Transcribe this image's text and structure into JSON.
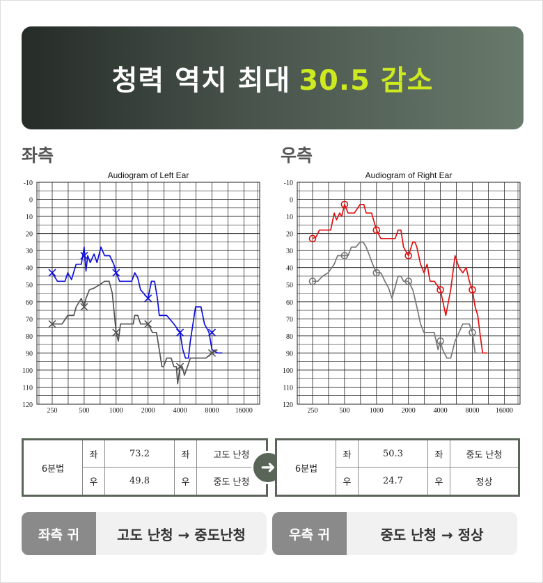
{
  "banner": {
    "title": "청력 역치 최대",
    "highlight": "30.5 감소",
    "highlight_color": "#cdea20"
  },
  "left_label": "좌측",
  "right_label": "우측",
  "chart_data": [
    {
      "type": "line",
      "title": "Audiogram of Left Ear",
      "x_ticks": [
        "250",
        "500",
        "1000",
        "2000",
        "4000",
        "8000",
        "16000"
      ],
      "y_ticks": [
        "-10",
        "0",
        "10",
        "20",
        "30",
        "40",
        "50",
        "60",
        "70",
        "80",
        "90",
        "100",
        "110",
        "120"
      ],
      "ylim": [
        -10,
        120
      ],
      "y_inverted": true,
      "grid": true,
      "series": [
        {
          "color": "#1010e0",
          "points": [
            [
              250,
              43
            ],
            [
              280,
              48
            ],
            [
              330,
              48
            ],
            [
              350,
              43
            ],
            [
              380,
              47
            ],
            [
              420,
              38
            ],
            [
              470,
              38
            ],
            [
              500,
              28
            ],
            [
              520,
              42
            ],
            [
              540,
              33
            ],
            [
              570,
              37
            ],
            [
              620,
              32
            ],
            [
              660,
              37
            ],
            [
              720,
              28
            ],
            [
              780,
              33
            ],
            [
              870,
              33
            ],
            [
              950,
              38
            ],
            [
              1000,
              43
            ],
            [
              1080,
              48
            ],
            [
              1200,
              48
            ],
            [
              1400,
              48
            ],
            [
              1500,
              43
            ],
            [
              1600,
              46
            ],
            [
              1700,
              53
            ],
            [
              2000,
              58
            ],
            [
              2150,
              48
            ],
            [
              2300,
              48
            ],
            [
              2450,
              58
            ],
            [
              2550,
              68
            ],
            [
              2800,
              68
            ],
            [
              3000,
              68
            ],
            [
              3500,
              73
            ],
            [
              4000,
              78
            ],
            [
              4250,
              88
            ],
            [
              4500,
              93
            ],
            [
              4800,
              93
            ],
            [
              5000,
              83
            ],
            [
              5600,
              63
            ],
            [
              6300,
              63
            ],
            [
              6800,
              73
            ],
            [
              7500,
              78
            ],
            [
              8000,
              88
            ],
            [
              9000,
              90
            ],
            [
              10000,
              90
            ]
          ],
          "markers": [
            [
              250,
              43
            ],
            [
              500,
              33
            ],
            [
              1000,
              43
            ],
            [
              2000,
              58
            ],
            [
              4000,
              78
            ],
            [
              8000,
              78
            ]
          ],
          "marker": "x"
        },
        {
          "color": "#555555",
          "points": [
            [
              250,
              73
            ],
            [
              280,
              73
            ],
            [
              310,
              73
            ],
            [
              350,
              68
            ],
            [
              400,
              68
            ],
            [
              420,
              63
            ],
            [
              450,
              60
            ],
            [
              470,
              58
            ],
            [
              500,
              63
            ],
            [
              520,
              58
            ],
            [
              560,
              53
            ],
            [
              620,
              52
            ],
            [
              700,
              50
            ],
            [
              780,
              48
            ],
            [
              860,
              48
            ],
            [
              920,
              55
            ],
            [
              1000,
              78
            ],
            [
              1050,
              83
            ],
            [
              1100,
              73
            ],
            [
              1300,
              73
            ],
            [
              1450,
              73
            ],
            [
              1500,
              68
            ],
            [
              1600,
              68
            ],
            [
              1700,
              73
            ],
            [
              2000,
              73
            ],
            [
              2200,
              78
            ],
            [
              2400,
              78
            ],
            [
              2550,
              88
            ],
            [
              2700,
              98
            ],
            [
              2800,
              98
            ],
            [
              3000,
              93
            ],
            [
              3300,
              93
            ],
            [
              3500,
              98
            ],
            [
              3700,
              98
            ],
            [
              3800,
              108
            ],
            [
              4000,
              98
            ],
            [
              4200,
              98
            ],
            [
              4400,
              103
            ],
            [
              4700,
              98
            ],
            [
              5000,
              93
            ],
            [
              6000,
              93
            ],
            [
              7000,
              93
            ],
            [
              8000,
              90
            ],
            [
              9000,
              88
            ]
          ],
          "markers": [
            [
              250,
              73
            ],
            [
              500,
              63
            ],
            [
              1000,
              78
            ],
            [
              2000,
              73
            ],
            [
              4000,
              98
            ],
            [
              8000,
              90
            ]
          ],
          "marker": "x"
        }
      ]
    },
    {
      "type": "line",
      "title": "Audiogram of Right Ear",
      "x_ticks": [
        "250",
        "500",
        "1000",
        "2000",
        "4000",
        "8000",
        "16000"
      ],
      "y_ticks": [
        "-10",
        "0",
        "10",
        "20",
        "30",
        "40",
        "50",
        "60",
        "70",
        "80",
        "90",
        "100",
        "110",
        "120"
      ],
      "ylim": [
        -10,
        120
      ],
      "y_inverted": true,
      "grid": true,
      "series": [
        {
          "color": "#e01010",
          "points": [
            [
              250,
              23
            ],
            [
              270,
              22
            ],
            [
              290,
              18
            ],
            [
              330,
              18
            ],
            [
              370,
              18
            ],
            [
              400,
              8
            ],
            [
              420,
              12
            ],
            [
              450,
              8
            ],
            [
              470,
              10
            ],
            [
              500,
              3
            ],
            [
              540,
              8
            ],
            [
              620,
              8
            ],
            [
              700,
              3
            ],
            [
              760,
              3
            ],
            [
              800,
              8
            ],
            [
              900,
              8
            ],
            [
              1000,
              18
            ],
            [
              1100,
              23
            ],
            [
              1300,
              23
            ],
            [
              1500,
              23
            ],
            [
              1600,
              18
            ],
            [
              1700,
              18
            ],
            [
              1800,
              28
            ],
            [
              2000,
              33
            ],
            [
              2200,
              25
            ],
            [
              2300,
              25
            ],
            [
              2400,
              28
            ],
            [
              2600,
              38
            ],
            [
              2800,
              43
            ],
            [
              3000,
              38
            ],
            [
              3200,
              48
            ],
            [
              3500,
              48
            ],
            [
              4000,
              53
            ],
            [
              4500,
              68
            ],
            [
              5000,
              53
            ],
            [
              5500,
              33
            ],
            [
              6000,
              40
            ],
            [
              6500,
              43
            ],
            [
              7000,
              40
            ],
            [
              7500,
              48
            ],
            [
              8000,
              53
            ],
            [
              8500,
              63
            ],
            [
              9000,
              68
            ],
            [
              9500,
              80
            ],
            [
              10000,
              90
            ],
            [
              11000,
              90
            ]
          ],
          "markers": [
            [
              250,
              23
            ],
            [
              500,
              3
            ],
            [
              1000,
              18
            ],
            [
              2000,
              33
            ],
            [
              4000,
              53
            ],
            [
              8000,
              53
            ]
          ],
          "marker": "o"
        },
        {
          "color": "#777777",
          "points": [
            [
              250,
              48
            ],
            [
              280,
              48
            ],
            [
              310,
              45
            ],
            [
              350,
              43
            ],
            [
              400,
              38
            ],
            [
              430,
              33
            ],
            [
              470,
              33
            ],
            [
              500,
              33
            ],
            [
              540,
              33
            ],
            [
              580,
              28
            ],
            [
              640,
              28
            ],
            [
              700,
              25
            ],
            [
              750,
              25
            ],
            [
              800,
              28
            ],
            [
              860,
              33
            ],
            [
              920,
              38
            ],
            [
              1000,
              43
            ],
            [
              1100,
              43
            ],
            [
              1200,
              48
            ],
            [
              1300,
              52
            ],
            [
              1400,
              58
            ],
            [
              1600,
              45
            ],
            [
              1700,
              45
            ],
            [
              1800,
              48
            ],
            [
              2000,
              48
            ],
            [
              2200,
              53
            ],
            [
              2400,
              63
            ],
            [
              2600,
              73
            ],
            [
              2800,
              78
            ],
            [
              3200,
              78
            ],
            [
              3500,
              78
            ],
            [
              3800,
              88
            ],
            [
              4000,
              83
            ],
            [
              4200,
              88
            ],
            [
              4600,
              93
            ],
            [
              5000,
              93
            ],
            [
              5500,
              83
            ],
            [
              6000,
              78
            ],
            [
              6500,
              73
            ],
            [
              7000,
              73
            ],
            [
              7500,
              73
            ],
            [
              8000,
              78
            ],
            [
              8500,
              90
            ],
            [
              9000,
              90
            ]
          ],
          "markers": [
            [
              250,
              48
            ],
            [
              500,
              33
            ],
            [
              1000,
              43
            ],
            [
              2000,
              48
            ],
            [
              4000,
              83
            ],
            [
              8000,
              78
            ]
          ],
          "marker": "o"
        }
      ]
    }
  ],
  "before_table": {
    "head": "6분법",
    "rows": [
      {
        "side": "좌",
        "value": "73.2",
        "side2": "좌",
        "grade": "고도 난청"
      },
      {
        "side": "우",
        "value": "49.8",
        "side2": "우",
        "grade": "중도 난청"
      }
    ]
  },
  "after_table": {
    "head": "6분법",
    "rows": [
      {
        "side": "좌",
        "value": "50.3",
        "side2": "좌",
        "grade": "중도 난청"
      },
      {
        "side": "우",
        "value": "24.7",
        "side2": "우",
        "grade": "정상"
      }
    ]
  },
  "arrow_icon": "right-arrow-icon",
  "summary": [
    {
      "tag": "좌측 귀",
      "text": "고도 난청 → 중도난청"
    },
    {
      "tag": "우측 귀",
      "text": "중도 난청 → 정상"
    }
  ]
}
